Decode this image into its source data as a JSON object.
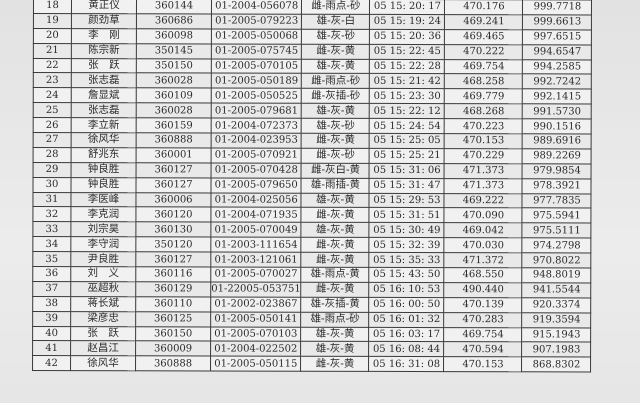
{
  "rows": [
    [
      "18",
      "黄正仪",
      "360144",
      "01-2004-056078",
      "雌-雨点-砂",
      "05 15: 20: 17",
      "470.176",
      "999.7718"
    ],
    [
      "19",
      "颜劲草",
      "360686",
      "01-2005-079223",
      "雄-灰-白",
      "05 15: 19: 24",
      "469.241",
      "999.6613"
    ],
    [
      "20",
      "李　刚",
      "360098",
      "01-2005-050068",
      "雄-灰-砂",
      "05 15: 20: 36",
      "469.465",
      "997.6515"
    ],
    [
      "21",
      "陈宗新",
      "350145",
      "01-2005-075745",
      "雌-灰-黄",
      "05 15: 22: 45",
      "470.222",
      "994.6547"
    ],
    [
      "22",
      "张　跃",
      "350150",
      "01-2005-070105",
      "雄-灰-黄",
      "05 15: 22: 28",
      "469.754",
      "994.2585"
    ],
    [
      "23",
      "张志磊",
      "360028",
      "01-2005-050189",
      "雌-雨点-砂",
      "05 15: 21: 42",
      "468.258",
      "992.7242"
    ],
    [
      "24",
      "詹显斌",
      "360109",
      "01-2005-050525",
      "雌-灰插-砂",
      "05 15: 23: 30",
      "469.779",
      "992.1415"
    ],
    [
      "25",
      "张志磊",
      "360028",
      "01-2005-079681",
      "雄-灰-黄",
      "05 15: 22: 12",
      "468.268",
      "991.5730"
    ],
    [
      "26",
      "李立新",
      "360159",
      "01-2004-072373",
      "雄-灰-砂",
      "05 15: 24: 54",
      "470.223",
      "990.1516"
    ],
    [
      "27",
      "徐风华",
      "360888",
      "01-2004-023953",
      "雌-灰-黄",
      "05 15: 25: 05",
      "470.153",
      "989.6916"
    ],
    [
      "28",
      "舒兆东",
      "360001",
      "01-2005-070921",
      "雌-灰-砂",
      "05 15: 25: 21",
      "470.229",
      "989.2269"
    ],
    [
      "29",
      "钟良胜",
      "360127",
      "01-2005-070428",
      "雌-灰白-黄",
      "05 15: 31: 06",
      "471.373",
      "979.9854"
    ],
    [
      "30",
      "钟良胜",
      "360127",
      "01-2005-079650",
      "雄-雨插-黄",
      "05 15: 31: 47",
      "471.373",
      "978.3921"
    ],
    [
      "31",
      "李医峰",
      "360006",
      "01-2004-025056",
      "雄-灰-黄",
      "05 15: 29: 53",
      "469.222",
      "977.7835"
    ],
    [
      "32",
      "李克润",
      "360120",
      "01-2004-071935",
      "雌-灰-黄",
      "05 15: 31: 51",
      "470.090",
      "975.5941"
    ],
    [
      "33",
      "刘宗昊",
      "360130",
      "01-2005-070049",
      "雄-灰-黄",
      "05 15: 30: 49",
      "469.042",
      "975.5111"
    ],
    [
      "34",
      "李守润",
      "350120",
      "01-2003-111654",
      "雌-灰-黄",
      "05 15: 32: 39",
      "470.030",
      "974.2798"
    ],
    [
      "35",
      "尹良胜",
      "360127",
      "01-2003-121061",
      "雌-灰-黄",
      "05 15: 35: 33",
      "471.372",
      "970.8022"
    ],
    [
      "36",
      "刘　义",
      "360116",
      "01-2005-070027",
      "雄-雨点-黄",
      "05 15: 43: 50",
      "468.550",
      "948.8019"
    ],
    [
      "37",
      "巫超秋",
      "360129",
      "01-22005-053751",
      "雌-灰-黄",
      "05 16: 10: 53",
      "490.440",
      "941.5544"
    ],
    [
      "38",
      "蒋长斌",
      "360110",
      "01-2002-023867",
      "雄-灰插-黄",
      "05 16: 00: 50",
      "470.139",
      "920.3374"
    ],
    [
      "39",
      "梁彦忠",
      "360125",
      "01-2005-050141",
      "雄-雨点-砂",
      "05 16: 01: 32",
      "470.283",
      "919.3594"
    ],
    [
      "40",
      "张　跃",
      "360150",
      "01-2005-070103",
      "雄-灰-黄",
      "05 16: 03: 17",
      "469.754",
      "915.1943"
    ],
    [
      "41",
      "赵昌江",
      "360009",
      "01-2004-022502",
      "雄-灰-黄",
      "05 16: 08: 44",
      "470.594",
      "907.1983"
    ],
    [
      "42",
      "徐风华",
      "360888",
      "01-2005-050115",
      "雌-灰-黄",
      "05 16: 31: 08",
      "470.153",
      "868.8302"
    ]
  ]
}
